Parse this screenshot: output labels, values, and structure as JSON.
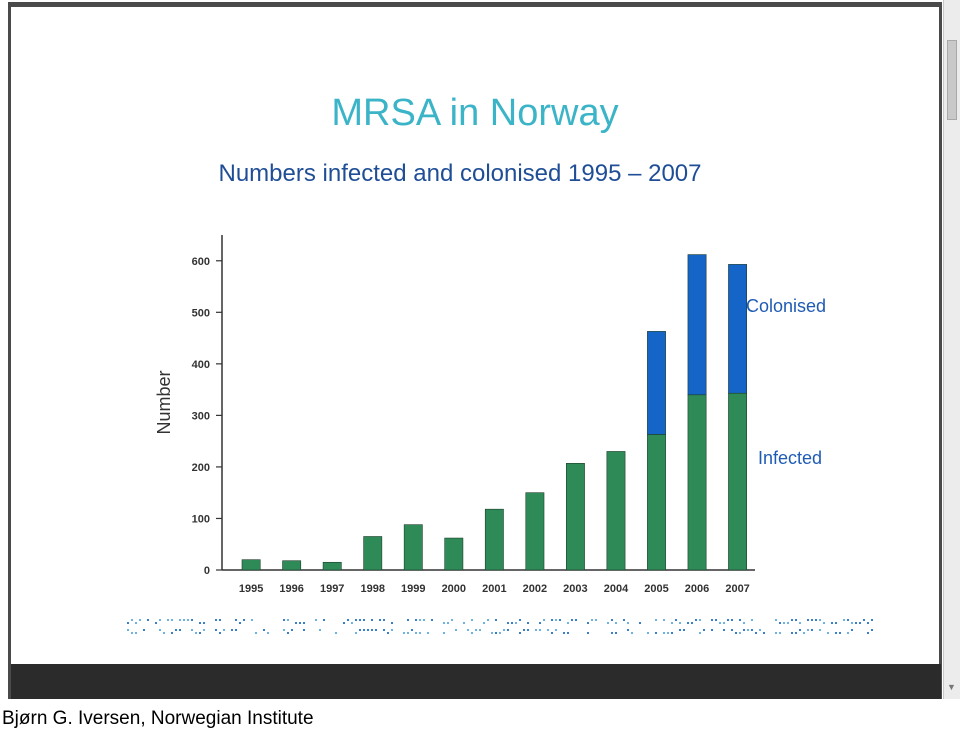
{
  "slide": {
    "title": "MRSA in Norway",
    "subtitle": "Numbers infected and colonised 1995 – 2007"
  },
  "chart_data": {
    "type": "bar",
    "stacked": true,
    "categories": [
      "1995",
      "1996",
      "1997",
      "1998",
      "1999",
      "2000",
      "2001",
      "2002",
      "2003",
      "2004",
      "2005",
      "2006",
      "2007"
    ],
    "series": [
      {
        "name": "Infected",
        "color": "#2e8b57",
        "values": [
          20,
          18,
          15,
          65,
          88,
          62,
          118,
          150,
          207,
          230,
          263,
          340,
          343
        ]
      },
      {
        "name": "Colonised",
        "color": "#1565c8",
        "values": [
          0,
          0,
          0,
          0,
          0,
          0,
          0,
          0,
          0,
          0,
          200,
          272,
          250
        ]
      }
    ],
    "ylabel": "Number",
    "ylim": [
      0,
      650
    ],
    "yticks": [
      "0",
      "100",
      "200",
      "300",
      "400",
      "500",
      "600"
    ],
    "legend": "right, labels beside the stacked bars"
  },
  "credit": "Bjørn G. Iversen, Norwegian Institute"
}
